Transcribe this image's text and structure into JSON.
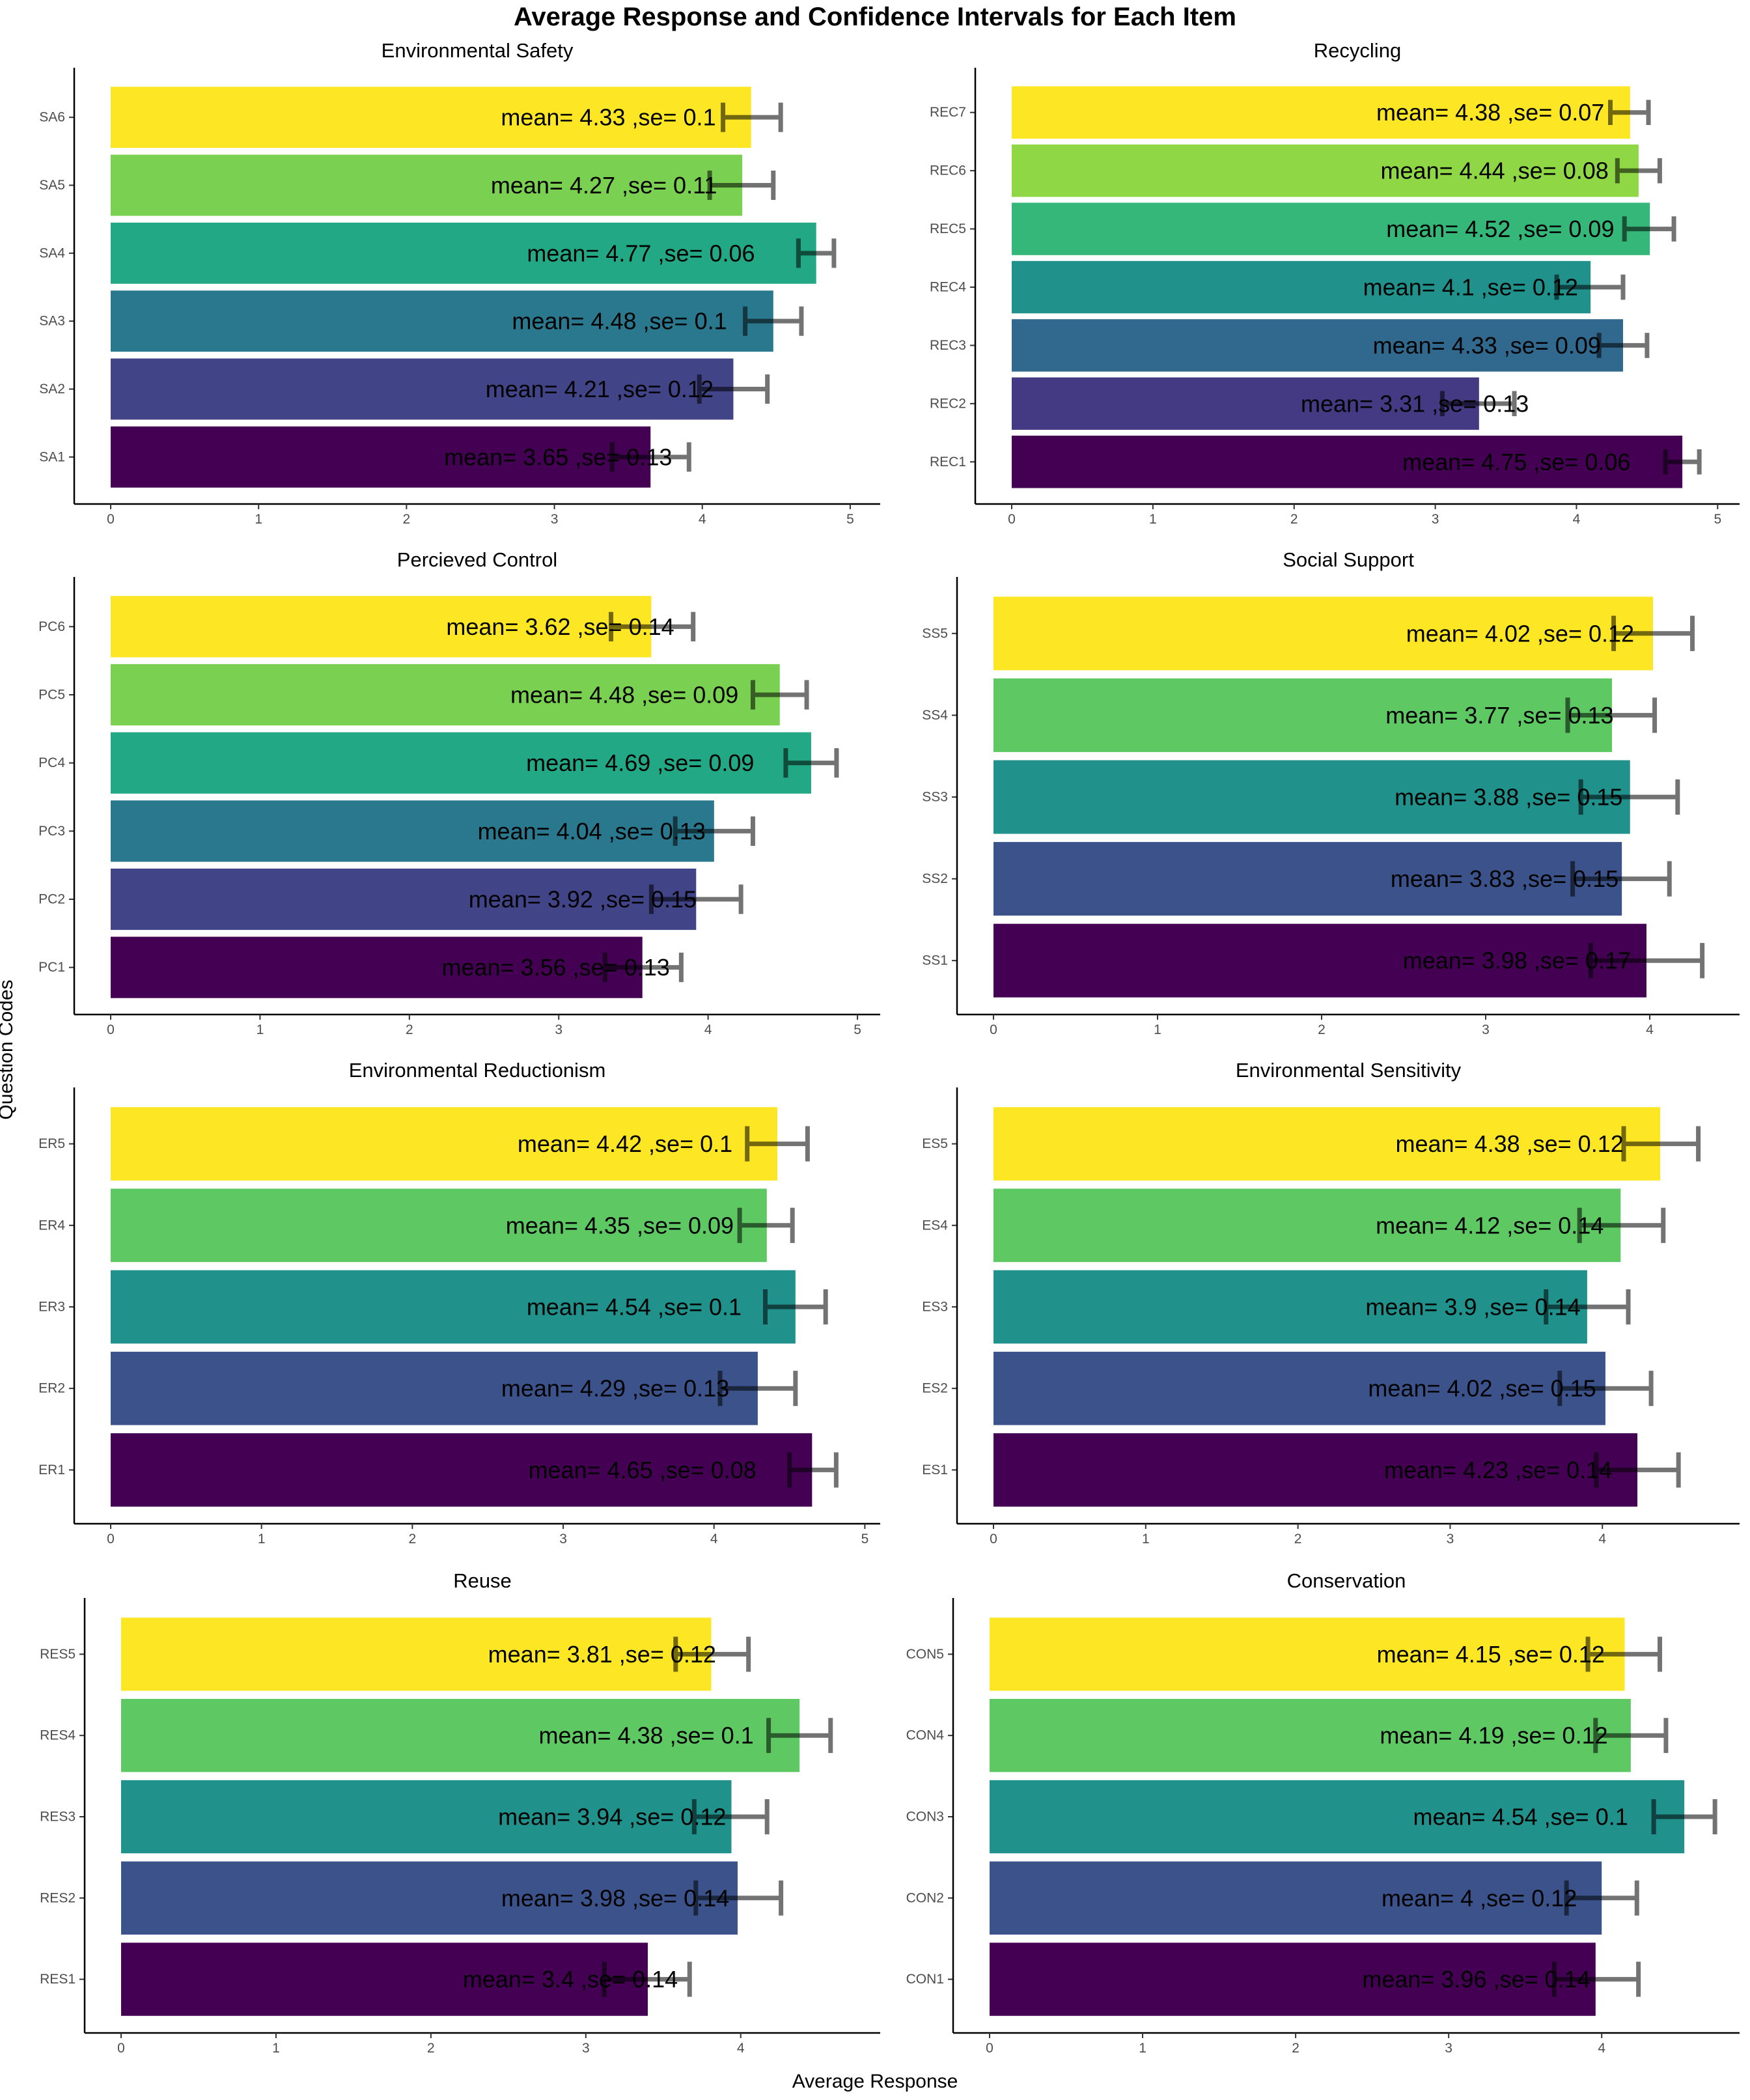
{
  "title": "Average Response and Confidence Intervals for Each Item",
  "xlabel": "Average Response",
  "ylabel": "Question Codes",
  "label_template": {
    "mean_prefix": "mean= ",
    "se_prefix": " ,se= "
  },
  "palette": {
    "5": [
      "#fde725",
      "#5ec962",
      "#21918c",
      "#3b528b",
      "#440154"
    ],
    "6": [
      "#fde725",
      "#7ad151",
      "#22a884",
      "#2a788e",
      "#414487",
      "#440154"
    ],
    "7": [
      "#fde725",
      "#8fd744",
      "#35b779",
      "#21918c",
      "#31688e",
      "#443983",
      "#440154"
    ]
  },
  "chart_data": [
    {
      "type": "bar",
      "orientation": "horizontal",
      "title": "Environmental Safety",
      "xlim": [
        0,
        5.15
      ],
      "xticks": [
        0,
        1,
        2,
        3,
        4,
        5
      ],
      "categories": [
        "SA6",
        "SA5",
        "SA4",
        "SA3",
        "SA2",
        "SA1"
      ],
      "means": [
        4.33,
        4.27,
        4.77,
        4.48,
        4.21,
        3.65
      ],
      "se": [
        0.1,
        0.11,
        0.06,
        0.1,
        0.12,
        0.13
      ],
      "err_low": [
        4.14,
        4.05,
        4.65,
        4.29,
        3.98,
        3.39
      ],
      "err_high": [
        4.53,
        4.48,
        4.89,
        4.67,
        4.44,
        3.91
      ]
    },
    {
      "type": "bar",
      "orientation": "horizontal",
      "title": "Recycling",
      "xlim": [
        0,
        5.1
      ],
      "xticks": [
        0,
        1,
        2,
        3,
        4,
        5
      ],
      "categories": [
        "REC7",
        "REC6",
        "REC5",
        "REC4",
        "REC3",
        "REC2",
        "REC1"
      ],
      "means": [
        4.38,
        4.44,
        4.52,
        4.1,
        4.33,
        3.31,
        4.75
      ],
      "se": [
        0.07,
        0.08,
        0.09,
        0.12,
        0.09,
        0.13,
        0.06
      ],
      "err_low": [
        4.24,
        4.29,
        4.34,
        3.86,
        4.16,
        3.05,
        4.63
      ],
      "err_high": [
        4.51,
        4.59,
        4.69,
        4.33,
        4.5,
        3.56,
        4.87
      ]
    },
    {
      "type": "bar",
      "orientation": "horizontal",
      "title": "Percieved Control",
      "xlim": [
        0,
        5.1
      ],
      "xticks": [
        0,
        1,
        2,
        3,
        4,
        5
      ],
      "categories": [
        "PC6",
        "PC5",
        "PC4",
        "PC3",
        "PC2",
        "PC1"
      ],
      "means": [
        3.62,
        4.48,
        4.69,
        4.04,
        3.92,
        3.56
      ],
      "se": [
        0.14,
        0.09,
        0.09,
        0.13,
        0.15,
        0.13
      ],
      "err_low": [
        3.35,
        4.3,
        4.52,
        3.78,
        3.62,
        3.31
      ],
      "err_high": [
        3.9,
        4.66,
        4.86,
        4.3,
        4.22,
        3.82
      ]
    },
    {
      "type": "bar",
      "orientation": "horizontal",
      "title": "Social Support",
      "xlim": [
        0,
        4.5
      ],
      "xticks": [
        0,
        1,
        2,
        3,
        4
      ],
      "categories": [
        "SS5",
        "SS4",
        "SS3",
        "SS2",
        "SS1"
      ],
      "means": [
        4.02,
        3.77,
        3.88,
        3.83,
        3.98
      ],
      "se": [
        0.12,
        0.13,
        0.15,
        0.15,
        0.17
      ],
      "err_low": [
        3.78,
        3.5,
        3.58,
        3.53,
        3.64
      ],
      "err_high": [
        4.26,
        4.03,
        4.17,
        4.12,
        4.32
      ]
    },
    {
      "type": "bar",
      "orientation": "horizontal",
      "title": "Environmental Reductionism",
      "xlim": [
        0,
        5.05
      ],
      "xticks": [
        0,
        1,
        2,
        3,
        4,
        5
      ],
      "categories": [
        "ER5",
        "ER4",
        "ER3",
        "ER2",
        "ER1"
      ],
      "means": [
        4.42,
        4.35,
        4.54,
        4.29,
        4.65
      ],
      "se": [
        0.1,
        0.09,
        0.1,
        0.13,
        0.08
      ],
      "err_low": [
        4.22,
        4.17,
        4.34,
        4.04,
        4.5
      ],
      "err_high": [
        4.62,
        4.52,
        4.74,
        4.54,
        4.81
      ]
    },
    {
      "type": "bar",
      "orientation": "horizontal",
      "title": "Environmental Sensitivity",
      "xlim": [
        0,
        4.85
      ],
      "xticks": [
        0,
        1,
        2,
        3,
        4
      ],
      "categories": [
        "ES5",
        "ES4",
        "ES3",
        "ES2",
        "ES1"
      ],
      "means": [
        4.38,
        4.12,
        3.9,
        4.02,
        4.23
      ],
      "se": [
        0.12,
        0.14,
        0.14,
        0.15,
        0.14
      ],
      "err_low": [
        4.14,
        3.85,
        3.63,
        3.72,
        3.96
      ],
      "err_high": [
        4.63,
        4.4,
        4.17,
        4.32,
        4.5
      ]
    },
    {
      "type": "bar",
      "orientation": "horizontal",
      "title": "Reuse",
      "xlim": [
        0,
        4.85
      ],
      "xticks": [
        0,
        1,
        2,
        3,
        4
      ],
      "categories": [
        "RES5",
        "RES4",
        "RES3",
        "RES2",
        "RES1"
      ],
      "means": [
        3.81,
        4.38,
        3.94,
        3.98,
        3.4
      ],
      "se": [
        0.12,
        0.1,
        0.12,
        0.14,
        0.14
      ],
      "err_low": [
        3.58,
        4.18,
        3.7,
        3.71,
        3.12
      ],
      "err_high": [
        4.05,
        4.58,
        4.17,
        4.26,
        3.67
      ]
    },
    {
      "type": "bar",
      "orientation": "horizontal",
      "title": "Conservation",
      "xlim": [
        0,
        4.85
      ],
      "xticks": [
        0,
        1,
        2,
        3,
        4
      ],
      "categories": [
        "CON5",
        "CON4",
        "CON3",
        "CON2",
        "CON1"
      ],
      "means": [
        4.15,
        4.19,
        4.54,
        4.0,
        3.96
      ],
      "se": [
        0.12,
        0.12,
        0.1,
        0.12,
        0.14
      ],
      "err_low": [
        3.91,
        3.96,
        4.34,
        3.77,
        3.69
      ],
      "err_high": [
        4.38,
        4.42,
        4.74,
        4.23,
        4.24
      ]
    }
  ]
}
